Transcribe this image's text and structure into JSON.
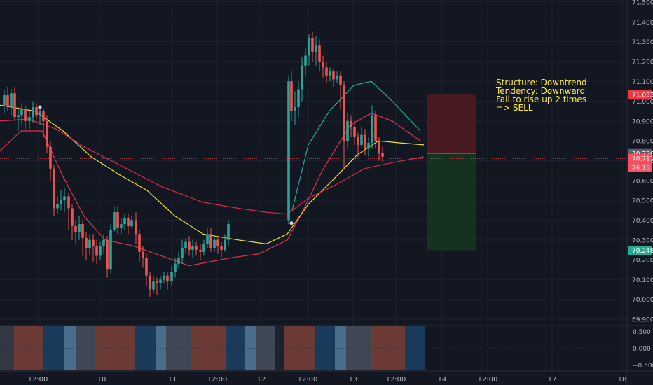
{
  "chart_data": {
    "type": "candlestick",
    "symbol_note": "Structure: Downtrend",
    "annotations": [
      "Structure: Downtrend",
      "Tendency: Downward",
      "Fail to rise up 2 times",
      "=> SELL"
    ],
    "price_axis": {
      "ylim": [
        69.87,
        71.52
      ],
      "ticks": [
        "71.500",
        "71.400",
        "71.300",
        "71.200",
        "71.100",
        "71.000",
        "70.900",
        "70.800",
        "70.700",
        "70.600",
        "70.500",
        "70.400",
        "70.300",
        "70.200",
        "70.100",
        "70.000",
        "69.900"
      ]
    },
    "time_axis": {
      "ticks": [
        "12:00",
        "10",
        "11",
        "12:00",
        "12",
        "12:00",
        "13",
        "12:00",
        "14",
        "12:00",
        "17",
        "18"
      ]
    },
    "price_labels": [
      {
        "text": "71.033",
        "value": 71.033,
        "color": "#f23645"
      },
      {
        "text": "70.736",
        "value": 70.736,
        "color": "#5d606b"
      },
      {
        "text": "70.711",
        "value": 70.711,
        "color": "#f7525f"
      },
      {
        "text": "26:18",
        "value": 70.665,
        "color": "#f7525f"
      },
      {
        "text": "70.248",
        "value": 70.248,
        "color": "#22ab94"
      }
    ],
    "current_price_line": 70.711,
    "short_position": {
      "entry": 70.736,
      "stop_loss": 71.033,
      "take_profit": 70.248,
      "stop_color": "#4a1a22",
      "target_color": "#14321f"
    },
    "ma_lines": [
      {
        "color": "#22ab94",
        "points": [
          [
            417,
            70.45
          ],
          [
            440,
            70.78
          ],
          [
            470,
            70.95
          ],
          [
            505,
            71.08
          ],
          [
            530,
            71.1
          ],
          [
            560,
            71.0
          ],
          [
            600,
            70.85
          ]
        ]
      },
      {
        "color": "#e0334b",
        "points": [
          [
            0,
            70.75
          ],
          [
            30,
            70.85
          ],
          [
            60,
            70.85
          ],
          [
            90,
            70.62
          ],
          [
            120,
            70.42
          ],
          [
            150,
            70.3
          ],
          [
            190,
            70.27
          ],
          [
            230,
            70.22
          ],
          [
            270,
            70.17
          ],
          [
            300,
            70.19
          ],
          [
            330,
            70.21
          ],
          [
            370,
            70.23
          ],
          [
            410,
            70.3
          ],
          [
            430,
            70.43
          ],
          [
            460,
            70.65
          ],
          [
            500,
            70.88
          ],
          [
            530,
            70.94
          ],
          [
            560,
            70.9
          ],
          [
            600,
            70.8
          ]
        ]
      },
      {
        "color": "#f0e130",
        "points": [
          [
            0,
            70.98
          ],
          [
            50,
            70.95
          ],
          [
            90,
            70.85
          ],
          [
            130,
            70.72
          ],
          [
            170,
            70.63
          ],
          [
            210,
            70.55
          ],
          [
            250,
            70.42
          ],
          [
            290,
            70.33
          ],
          [
            340,
            70.3
          ],
          [
            380,
            70.28
          ],
          [
            410,
            70.33
          ],
          [
            440,
            70.48
          ],
          [
            480,
            70.62
          ],
          [
            510,
            70.73
          ],
          [
            540,
            70.8
          ],
          [
            570,
            70.79
          ],
          [
            605,
            70.78
          ]
        ]
      },
      {
        "color": "#d8294a",
        "points": [
          [
            0,
            70.9
          ],
          [
            40,
            70.91
          ],
          [
            80,
            70.86
          ],
          [
            120,
            70.77
          ],
          [
            170,
            70.68
          ],
          [
            230,
            70.57
          ],
          [
            290,
            70.49
          ],
          [
            340,
            70.46
          ],
          [
            380,
            70.44
          ],
          [
            410,
            70.43
          ],
          [
            440,
            70.51
          ],
          [
            480,
            70.58
          ],
          [
            520,
            70.66
          ],
          [
            560,
            70.69
          ],
          [
            605,
            70.72
          ]
        ]
      }
    ],
    "pivot_points": [
      [
        57,
        70.97
      ],
      [
        416,
        70.385
      ]
    ],
    "candles": [
      [
        70.98,
        71.03,
        70.94,
        71.06
      ],
      [
        71.03,
        70.97,
        70.95,
        71.07
      ],
      [
        70.97,
        71.04,
        70.93,
        71.06
      ],
      [
        71.04,
        70.92,
        70.9,
        71.07
      ],
      [
        70.92,
        70.93,
        70.85,
        70.96
      ],
      [
        70.93,
        70.96,
        70.88,
        70.99
      ],
      [
        70.96,
        70.9,
        70.86,
        70.98
      ],
      [
        70.9,
        70.92,
        70.86,
        70.95
      ],
      [
        70.92,
        70.97,
        70.89,
        71.0
      ],
      [
        70.97,
        70.93,
        70.91,
        70.99
      ],
      [
        70.93,
        70.95,
        70.88,
        70.96
      ],
      [
        70.95,
        70.9,
        70.82,
        70.96
      ],
      [
        70.9,
        70.77,
        70.74,
        70.93
      ],
      [
        70.77,
        70.66,
        70.6,
        70.8
      ],
      [
        70.66,
        70.46,
        70.42,
        70.68
      ],
      [
        70.46,
        70.48,
        70.43,
        70.52
      ],
      [
        70.48,
        70.5,
        70.45,
        70.55
      ],
      [
        70.5,
        70.52,
        70.44,
        70.56
      ],
      [
        70.52,
        70.46,
        70.35,
        70.54
      ],
      [
        70.46,
        70.37,
        70.3,
        70.48
      ],
      [
        70.37,
        70.34,
        70.28,
        70.4
      ],
      [
        70.34,
        70.38,
        70.3,
        70.42
      ],
      [
        70.38,
        70.31,
        70.22,
        70.4
      ],
      [
        70.31,
        70.26,
        70.2,
        70.34
      ],
      [
        70.26,
        70.3,
        70.22,
        70.33
      ],
      [
        70.3,
        70.27,
        70.19,
        70.33
      ],
      [
        70.27,
        70.22,
        70.18,
        70.3
      ],
      [
        70.22,
        70.27,
        70.2,
        70.29
      ],
      [
        70.27,
        70.3,
        70.23,
        70.33
      ],
      [
        70.3,
        70.15,
        70.11,
        70.32
      ],
      [
        70.15,
        70.35,
        70.13,
        70.38
      ],
      [
        70.35,
        70.44,
        70.34,
        70.47
      ],
      [
        70.44,
        70.36,
        70.33,
        70.47
      ],
      [
        70.36,
        70.38,
        70.33,
        70.41
      ],
      [
        70.38,
        70.41,
        70.35,
        70.43
      ],
      [
        70.41,
        70.37,
        70.33,
        70.43
      ],
      [
        70.37,
        70.4,
        70.36,
        70.42
      ],
      [
        70.4,
        70.33,
        70.28,
        70.44
      ],
      [
        70.33,
        70.24,
        70.19,
        70.35
      ],
      [
        70.24,
        70.21,
        70.16,
        70.27
      ],
      [
        70.21,
        70.12,
        70.07,
        70.23
      ],
      [
        70.12,
        70.05,
        70.01,
        70.14
      ],
      [
        70.05,
        70.09,
        70.03,
        70.12
      ],
      [
        70.09,
        70.08,
        70.02,
        70.11
      ],
      [
        70.08,
        70.1,
        70.05,
        70.12
      ],
      [
        70.1,
        70.12,
        70.08,
        70.14
      ],
      [
        70.12,
        70.09,
        70.05,
        70.14
      ],
      [
        70.09,
        70.14,
        70.07,
        70.17
      ],
      [
        70.14,
        70.18,
        70.11,
        70.21
      ],
      [
        70.18,
        70.21,
        70.16,
        70.24
      ],
      [
        70.21,
        70.26,
        70.18,
        70.3
      ],
      [
        70.26,
        70.29,
        70.23,
        70.31
      ],
      [
        70.29,
        70.25,
        70.22,
        70.32
      ],
      [
        70.25,
        70.27,
        70.21,
        70.3
      ],
      [
        70.27,
        70.25,
        70.22,
        70.29
      ],
      [
        70.25,
        70.24,
        70.2,
        70.28
      ],
      [
        70.24,
        70.28,
        70.22,
        70.3
      ],
      [
        70.28,
        70.33,
        70.26,
        70.36
      ],
      [
        70.33,
        70.26,
        70.24,
        70.36
      ],
      [
        70.26,
        70.3,
        70.24,
        70.32
      ],
      [
        70.3,
        70.27,
        70.23,
        70.32
      ],
      [
        70.27,
        70.25,
        70.21,
        70.29
      ],
      [
        70.25,
        70.3,
        70.24,
        70.33
      ],
      [
        70.3,
        70.38,
        70.27,
        70.4
      ],
      [
        71.1,
        70.95,
        70.9,
        71.15
      ],
      [
        70.95,
        70.97,
        70.88,
        71.05
      ],
      [
        70.97,
        71.06,
        70.92,
        71.1
      ],
      [
        71.06,
        71.18,
        71.0,
        71.22
      ],
      [
        71.18,
        71.23,
        71.13,
        71.27
      ],
      [
        71.23,
        71.32,
        71.18,
        71.34
      ],
      [
        71.32,
        71.25,
        71.2,
        71.35
      ],
      [
        71.25,
        71.28,
        71.18,
        71.33
      ],
      [
        71.28,
        71.2,
        71.15,
        71.31
      ],
      [
        71.2,
        71.17,
        71.12,
        71.23
      ],
      [
        71.17,
        71.13,
        71.09,
        71.2
      ],
      [
        71.13,
        71.15,
        71.1,
        71.17
      ],
      [
        71.15,
        71.11,
        71.07,
        71.16
      ],
      [
        71.11,
        71.13,
        71.09,
        71.15
      ],
      [
        71.13,
        71.08,
        70.96,
        71.15
      ],
      [
        71.08,
        70.8,
        70.66,
        71.1
      ],
      [
        70.8,
        70.9,
        70.76,
        70.94
      ],
      [
        70.9,
        70.87,
        70.82,
        70.93
      ],
      [
        70.87,
        70.82,
        70.78,
        70.9
      ],
      [
        70.82,
        70.78,
        70.72,
        70.84
      ],
      [
        70.78,
        70.83,
        70.77,
        70.87
      ],
      [
        70.83,
        70.76,
        70.73,
        70.86
      ],
      [
        70.76,
        70.79,
        70.72,
        70.82
      ],
      [
        70.79,
        70.93,
        70.76,
        70.98
      ],
      [
        70.93,
        70.8,
        70.76,
        70.95
      ],
      [
        70.8,
        70.74,
        70.7,
        70.82
      ],
      [
        70.74,
        70.72,
        70.69,
        70.77
      ]
    ],
    "candle_x": [
      6,
      11,
      16,
      21,
      26,
      31,
      36,
      42,
      47,
      52,
      57,
      62,
      67,
      72,
      77,
      82,
      87,
      92,
      98,
      103,
      108,
      113,
      118,
      123,
      128,
      133,
      138,
      143,
      148,
      153,
      158,
      163,
      168,
      173,
      178,
      183,
      188,
      194,
      199,
      204,
      209,
      214,
      219,
      224,
      229,
      234,
      239,
      245,
      250,
      255,
      260,
      265,
      270,
      275,
      280,
      286,
      291,
      296,
      301,
      306,
      311,
      316,
      321,
      326,
      416,
      421,
      426,
      431,
      436,
      441,
      446,
      451,
      456,
      461,
      466,
      471,
      476,
      481,
      486,
      491,
      496,
      501,
      506,
      511,
      516,
      521,
      526,
      531,
      536,
      541,
      546,
      551
    ],
    "session_bands": [
      {
        "x": [
          0,
          20
        ],
        "color": "#333842"
      },
      {
        "x": [
          20,
          62
        ],
        "color": "#6b3a35"
      },
      {
        "x": [
          62,
          92
        ],
        "color": "#1a3a5c"
      },
      {
        "x": [
          92,
          108
        ],
        "color": "#4a6d8c"
      },
      {
        "x": [
          108,
          135
        ],
        "color": "#3f4654"
      },
      {
        "x": [
          135,
          192
        ],
        "color": "#6b3a35"
      },
      {
        "x": [
          192,
          222
        ],
        "color": "#1a3a5c"
      },
      {
        "x": [
          222,
          237
        ],
        "color": "#4a6d8c"
      },
      {
        "x": [
          237,
          272
        ],
        "color": "#3f4654"
      },
      {
        "x": [
          272,
          322
        ],
        "color": "#6b3a35"
      },
      {
        "x": [
          322,
          350
        ],
        "color": "#1a3a5c"
      },
      {
        "x": [
          350,
          366
        ],
        "color": "#4a6d8c"
      },
      {
        "x": [
          366,
          392
        ],
        "color": "#3f4654"
      },
      {
        "x": [
          392,
          406
        ],
        "color": "#1e222d"
      },
      {
        "x": [
          406,
          450
        ],
        "color": "#6b3a35"
      },
      {
        "x": [
          450,
          478
        ],
        "color": "#1a3a5c"
      },
      {
        "x": [
          478,
          494
        ],
        "color": "#4a6d8c"
      },
      {
        "x": [
          494,
          530
        ],
        "color": "#3f4654"
      },
      {
        "x": [
          530,
          578
        ],
        "color": "#6b3a35"
      },
      {
        "x": [
          578,
          606
        ],
        "color": "#1a3a5c"
      }
    ],
    "sub_axis": {
      "ticks": [
        "0.500",
        "0.000",
        "−0.500"
      ]
    },
    "up_color": "#26a69a",
    "down_color": "#ef5350"
  }
}
